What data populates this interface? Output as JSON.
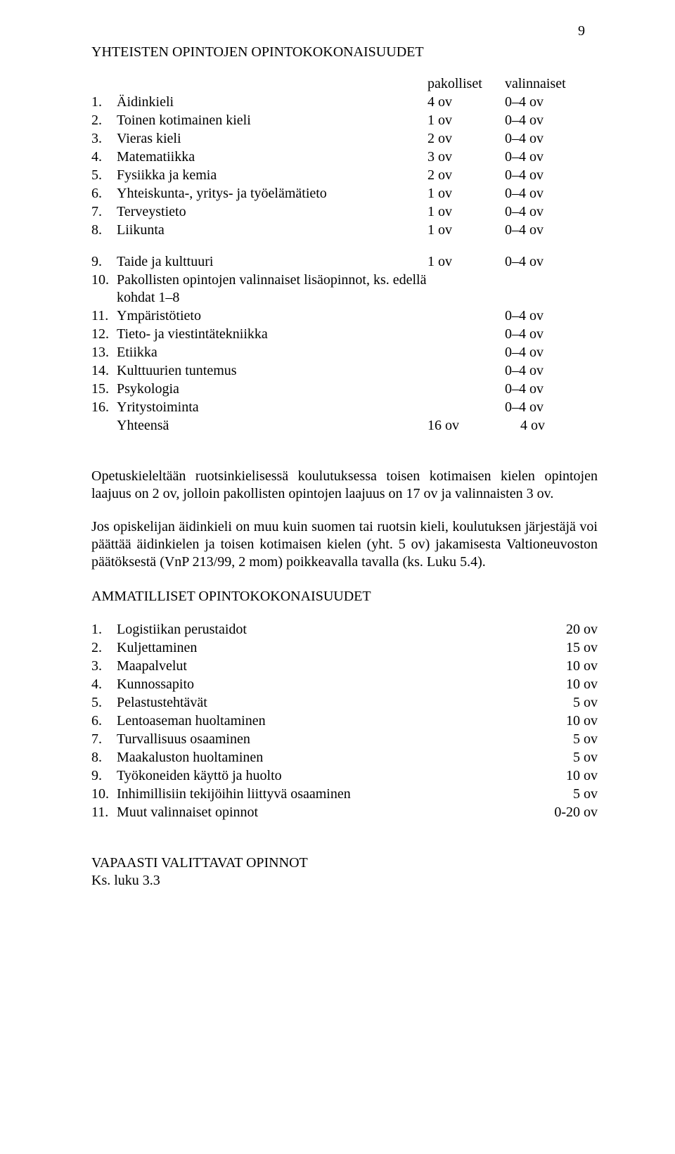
{
  "page_number": "9",
  "sections": {
    "yhteiset_heading": "YHTEISTEN OPINTOJEN OPINTOKOKONAISUUDET",
    "headers": {
      "pakolliset": "pakolliset",
      "valinnaiset": "valinnaiset"
    },
    "common_rows": [
      {
        "num": "1.",
        "label": "Äidinkieli",
        "p": "4 ov",
        "v": "0–4 ov"
      },
      {
        "num": "2.",
        "label": "Toinen kotimainen kieli",
        "p": "1 ov",
        "v": "0–4 ov"
      },
      {
        "num": "3.",
        "label": "Vieras kieli",
        "p": "2 ov",
        "v": "0–4 ov"
      },
      {
        "num": "4.",
        "label": "Matematiikka",
        "p": "3 ov",
        "v": "0–4 ov"
      },
      {
        "num": "5.",
        "label": "Fysiikka ja kemia",
        "p": "2 ov",
        "v": "0–4 ov"
      },
      {
        "num": "6.",
        "label": "Yhteiskunta-, yritys- ja työelämätieto",
        "p": "1 ov",
        "v": "0–4 ov"
      },
      {
        "num": "7.",
        "label": "Terveystieto",
        "p": "1 ov",
        "v": "0–4 ov"
      },
      {
        "num": "8.",
        "label": "Liikunta",
        "p": "1 ov",
        "v": "0–4 ov"
      }
    ],
    "common_rows_gap": true,
    "common_rows2": [
      {
        "num": "9.",
        "label": "Taide ja kulttuuri",
        "p": "1 ov",
        "v": "0–4 ov"
      },
      {
        "num": "10.",
        "label": "Pakollisten opintojen valinnaiset lisäopinnot, ks. edellä kohdat 1–8",
        "p": "",
        "v": ""
      },
      {
        "num": "11.",
        "label": "Ympäristötieto",
        "p": "",
        "v": "0–4 ov"
      },
      {
        "num": "12.",
        "label": "Tieto- ja viestintätekniikka",
        "p": "",
        "v": "0–4 ov"
      },
      {
        "num": "13.",
        "label": "Etiikka",
        "p": "",
        "v": "0–4 ov"
      },
      {
        "num": "14.",
        "label": "Kulttuurien tuntemus",
        "p": "",
        "v": "0–4 ov"
      },
      {
        "num": "15.",
        "label": "Psykologia",
        "p": "",
        "v": "0–4 ov"
      },
      {
        "num": "16.",
        "label": "Yritystoiminta",
        "p": "",
        "v": "0–4 ov"
      }
    ],
    "yhteensa": {
      "label": "Yhteensä",
      "p": "16 ov",
      "v": "4 ov"
    },
    "para1": "Opetuskieleltään ruotsinkielisessä koulutuksessa toisen kotimaisen kielen opintojen laajuus on 2 ov, jolloin pakollisten opintojen laajuus on 17 ov ja valinnaisten 3 ov.",
    "para2": "Jos opiskelijan äidinkieli on muu kuin suomen tai ruotsin kieli, koulutuksen järjestäjä voi päättää äidinkielen ja toisen kotimaisen kielen (yht. 5 ov) jakamisesta Valtioneuvoston päätöksestä (VnP 213/99, 2 mom) poikkeavalla tavalla (ks. Luku 5.4).",
    "ammatilliset_heading": "AMMATILLISET OPINTOKOKONAISUUDET",
    "vocational_rows": [
      {
        "num": "1.",
        "label": "Logistiikan perustaidot",
        "val": "20 ov"
      },
      {
        "num": "2.",
        "label": "Kuljettaminen",
        "val": "15 ov"
      },
      {
        "num": "3.",
        "label": "Maapalvelut",
        "val": "10 ov"
      },
      {
        "num": "4.",
        "label": "Kunnossapito",
        "val": "10 ov"
      },
      {
        "num": "5.",
        "label": "Pelastustehtävät",
        "val": "5 ov"
      },
      {
        "num": "6.",
        "label": "Lentoaseman huoltaminen",
        "val": "10 ov"
      },
      {
        "num": "7.",
        "label": "Turvallisuus osaaminen",
        "val": "5 ov"
      },
      {
        "num": "8.",
        "label": "Maakaluston huoltaminen",
        "val": "5 ov"
      },
      {
        "num": "9.",
        "label": "Työkoneiden käyttö ja huolto",
        "val": "10 ov"
      },
      {
        "num": "10.",
        "label": "Inhimillisiin tekijöihin liittyvä osaaminen",
        "val": "5 ov"
      },
      {
        "num": "11.",
        "label": "Muut valinnaiset opinnot",
        "val": "0-20 ov"
      }
    ],
    "footer_heading": "VAPAASTI VALITTAVAT OPINNOT",
    "footer_sub": "Ks. luku 3.3"
  }
}
